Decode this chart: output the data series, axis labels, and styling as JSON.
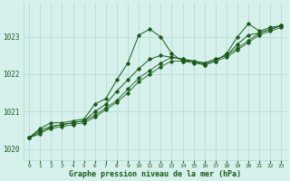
{
  "title": "Graphe pression niveau de la mer (hPa)",
  "bg_color": "#d6f0eb",
  "grid_color": "#b0d8d0",
  "line_color": "#1a5c1a",
  "xlim": [
    -0.5,
    23.5
  ],
  "ylim": [
    1019.7,
    1023.9
  ],
  "yticks": [
    1020,
    1021,
    1022,
    1023
  ],
  "xticks": [
    0,
    1,
    2,
    3,
    4,
    5,
    6,
    7,
    8,
    9,
    10,
    11,
    12,
    13,
    14,
    15,
    16,
    17,
    18,
    19,
    20,
    21,
    22,
    23
  ],
  "line1_x": [
    0,
    1,
    2,
    3,
    4,
    5,
    6,
    7,
    8,
    9,
    10,
    11,
    12,
    13,
    14,
    15,
    16,
    17,
    18,
    19,
    20,
    21,
    22,
    23
  ],
  "line1_y": [
    1020.3,
    1020.55,
    1020.7,
    1020.7,
    1020.75,
    1020.8,
    1021.2,
    1021.35,
    1021.85,
    1022.3,
    1023.05,
    1023.2,
    1023.0,
    1022.55,
    1022.35,
    1022.35,
    1022.25,
    1022.35,
    1022.55,
    1023.0,
    1023.35,
    1023.15,
    1023.25,
    1023.3
  ],
  "line2_x": [
    0,
    1,
    2,
    3,
    4,
    5,
    6,
    7,
    8,
    9,
    10,
    11,
    12,
    13,
    14,
    15,
    16,
    17,
    18,
    19,
    20,
    21,
    22,
    23
  ],
  "line2_y": [
    1020.3,
    1020.4,
    1020.6,
    1020.65,
    1020.7,
    1020.75,
    1020.9,
    1021.1,
    1021.3,
    1021.6,
    1021.9,
    1022.1,
    1022.3,
    1022.45,
    1022.4,
    1022.35,
    1022.3,
    1022.4,
    1022.5,
    1022.7,
    1022.9,
    1023.1,
    1023.2,
    1023.3
  ],
  "line3_x": [
    0,
    1,
    2,
    3,
    4,
    5,
    6,
    7,
    8,
    9,
    10,
    11,
    12,
    13,
    14,
    15,
    16,
    17,
    18,
    19,
    20,
    21,
    22,
    23
  ],
  "line3_y": [
    1020.3,
    1020.45,
    1020.55,
    1020.6,
    1020.65,
    1020.7,
    1020.85,
    1021.05,
    1021.25,
    1021.5,
    1021.8,
    1022.0,
    1022.2,
    1022.35,
    1022.35,
    1022.3,
    1022.25,
    1022.35,
    1022.45,
    1022.65,
    1022.85,
    1023.05,
    1023.15,
    1023.25
  ],
  "line4_x": [
    0,
    1,
    2,
    3,
    4,
    5,
    6,
    7,
    8,
    9,
    10,
    11,
    12,
    13,
    14,
    15,
    16,
    17,
    18,
    19,
    20,
    21,
    22,
    23
  ],
  "line4_y": [
    1020.3,
    1020.5,
    1020.6,
    1020.65,
    1020.7,
    1020.75,
    1021.0,
    1021.2,
    1021.55,
    1021.85,
    1022.15,
    1022.4,
    1022.5,
    1022.45,
    1022.4,
    1022.35,
    1022.3,
    1022.4,
    1022.5,
    1022.8,
    1023.05,
    1023.1,
    1023.2,
    1023.3
  ]
}
